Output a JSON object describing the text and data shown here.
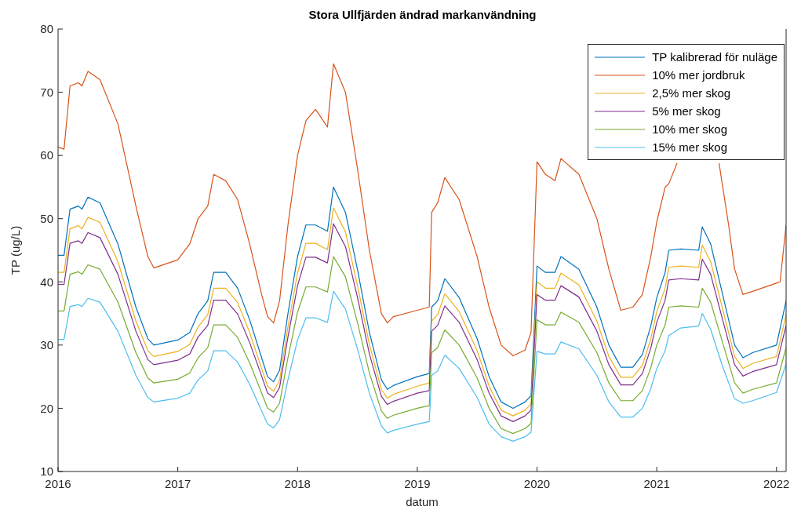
{
  "chart_data": {
    "type": "line",
    "title": "Stora Ullfjärden ändrad markanvändning",
    "xlabel": "datum",
    "ylabel": "TP (ug/L)",
    "x": [
      2016.0,
      2016.05,
      2016.1,
      2016.17,
      2016.2,
      2016.25,
      2016.35,
      2016.5,
      2016.65,
      2016.75,
      2016.8,
      2017.0,
      2017.1,
      2017.17,
      2017.25,
      2017.3,
      2017.4,
      2017.5,
      2017.6,
      2017.7,
      2017.75,
      2017.8,
      2017.85,
      2017.92,
      2018.0,
      2018.07,
      2018.15,
      2018.25,
      2018.3,
      2018.4,
      2018.5,
      2018.6,
      2018.7,
      2018.75,
      2018.8,
      2019.0,
      2019.1,
      2019.12,
      2019.17,
      2019.23,
      2019.35,
      2019.5,
      2019.6,
      2019.7,
      2019.8,
      2019.9,
      2019.95,
      2020.0,
      2020.07,
      2020.15,
      2020.2,
      2020.35,
      2020.5,
      2020.6,
      2020.7,
      2020.8,
      2020.88,
      2020.95,
      2021.0,
      2021.07,
      2021.1,
      2021.2,
      2021.35,
      2021.38,
      2021.45,
      2021.55,
      2021.65,
      2021.72,
      2021.8,
      2022.0,
      2022.08
    ],
    "series": [
      {
        "name": "TP kalibrerad för nuläge",
        "color": "#0072bd",
        "values": [
          44.2,
          44.2,
          51.5,
          52,
          51.5,
          53.4,
          52.5,
          46,
          36,
          31,
          30,
          30.8,
          32,
          35,
          37,
          41.5,
          41.5,
          39,
          34,
          28,
          25,
          24.2,
          26,
          35,
          44,
          49,
          49,
          48,
          55,
          51,
          42,
          32,
          24.5,
          23,
          23.6,
          25,
          25.5,
          36,
          37,
          40.5,
          37.5,
          31,
          25,
          21,
          20,
          21,
          22,
          42.5,
          41.5,
          41.5,
          44,
          42,
          36,
          30,
          26.5,
          26.5,
          28.5,
          33,
          37.5,
          41.5,
          45,
          45.2,
          45,
          48.7,
          46,
          38,
          30,
          28,
          28.8,
          30,
          37
        ]
      },
      {
        "name": "10% mer jordbruk",
        "color": "#d95319",
        "x": [
          2016.0,
          2016.05,
          2016.1,
          2016.17,
          2016.2,
          2016.25,
          2016.35,
          2016.5,
          2016.65,
          2016.75,
          2016.8,
          2017.0,
          2017.1,
          2017.17,
          2017.25,
          2017.3,
          2017.4,
          2017.5,
          2017.6,
          2017.7,
          2017.75,
          2017.8,
          2017.85,
          2017.92,
          2018.0,
          2018.07,
          2018.15,
          2018.25,
          2018.3,
          2018.4,
          2018.5,
          2018.6,
          2018.7,
          2018.75,
          2018.8,
          2019.0,
          2019.1,
          2019.12,
          2019.17,
          2019.23,
          2019.35,
          2019.5,
          2019.6,
          2019.7,
          2019.8,
          2019.9,
          2019.95,
          2020.0,
          2020.07,
          2020.15,
          2020.2,
          2020.35,
          2020.5,
          2020.6,
          2020.7,
          2020.8,
          2020.88,
          2020.95,
          2021.0,
          2021.07,
          2021.1,
          2021.17,
          2021.25,
          2021.52,
          2021.6,
          2021.65,
          2021.72,
          2021.8,
          2022.0,
          2022.03,
          2022.08
        ],
        "values": [
          61.3,
          61,
          71,
          71.5,
          71,
          73.3,
          72,
          65,
          52,
          44,
          42.2,
          43.5,
          46,
          50,
          52,
          57,
          56,
          53,
          46,
          38,
          34.5,
          33.5,
          37,
          49,
          60,
          65.5,
          67.3,
          64.5,
          74.5,
          70,
          58,
          45,
          35,
          33.5,
          34.5,
          35.5,
          36,
          51,
          52.5,
          56.5,
          53,
          44,
          36,
          30,
          28.3,
          29.2,
          32,
          59,
          57,
          56,
          59.5,
          57,
          50,
          42,
          35.5,
          36,
          38,
          44,
          49.5,
          55,
          55.5,
          58.8,
          null,
          58.8,
          49,
          42,
          38,
          38.5,
          39.8,
          40,
          49
        ]
      },
      {
        "name": "2,5% mer skog",
        "color": "#edb120",
        "values": [
          41.5,
          41.5,
          48.4,
          48.9,
          48.4,
          50.2,
          49.4,
          43.2,
          33.8,
          29.1,
          28.2,
          29,
          30.1,
          32.9,
          34.8,
          39,
          39,
          36.7,
          32,
          26.3,
          23.5,
          22.7,
          24.4,
          32.9,
          41.4,
          46.1,
          46.1,
          45.1,
          51.7,
          47.9,
          39.5,
          30.1,
          23,
          21.6,
          22.2,
          23.5,
          24,
          33.8,
          34.8,
          38.1,
          35.3,
          29.1,
          23.5,
          19.7,
          18.8,
          19.7,
          20.7,
          40,
          39,
          39,
          41.4,
          39.5,
          33.8,
          28.2,
          24.9,
          24.9,
          26.8,
          31,
          35.3,
          39,
          42.3,
          42.5,
          42.3,
          45.8,
          43.2,
          35.7,
          28.2,
          26.3,
          27.1,
          28.2,
          34.8
        ]
      },
      {
        "name": "5% mer skog",
        "color": "#7e2f8e",
        "values": [
          39.6,
          39.6,
          46.1,
          46.5,
          46.1,
          47.8,
          47,
          41.2,
          32.2,
          27.7,
          26.9,
          27.6,
          28.6,
          31.3,
          33.1,
          37.1,
          37.1,
          34.9,
          30.4,
          25.1,
          22.4,
          21.7,
          23.3,
          31.3,
          39.4,
          43.9,
          43.9,
          43,
          49.2,
          45.6,
          37.6,
          28.6,
          21.9,
          20.6,
          21.1,
          22.4,
          22.8,
          32.2,
          33.1,
          36.2,
          33.6,
          27.7,
          22.4,
          18.8,
          17.9,
          18.8,
          19.7,
          38,
          37.1,
          37.1,
          39.4,
          37.6,
          32.2,
          26.9,
          23.7,
          23.7,
          25.5,
          29.5,
          33.6,
          37.1,
          40.3,
          40.5,
          40.3,
          43.6,
          41.2,
          34,
          26.9,
          25.1,
          25.8,
          26.9,
          33.1
        ]
      },
      {
        "name": "10% mer skog",
        "color": "#77ac30",
        "values": [
          35.4,
          35.4,
          41.2,
          41.6,
          41.2,
          42.7,
          42,
          36.8,
          28.8,
          24.8,
          24,
          24.6,
          25.6,
          28,
          29.6,
          33.2,
          33.2,
          31.2,
          27.2,
          22.4,
          20,
          19.4,
          20.8,
          28,
          35.2,
          39.2,
          39.2,
          38.4,
          44,
          40.8,
          33.6,
          25.6,
          19.6,
          18.4,
          18.9,
          20,
          20.4,
          28.8,
          29.6,
          32.4,
          30,
          24.8,
          20,
          16.8,
          16,
          16.8,
          17.6,
          34,
          33.2,
          33.2,
          35.2,
          33.6,
          28.8,
          24,
          21.2,
          21.2,
          22.8,
          26.4,
          30,
          33.2,
          36,
          36.2,
          36,
          39,
          36.8,
          30.4,
          24,
          22.4,
          23,
          24,
          29.6
        ]
      },
      {
        "name": "15% mer skog",
        "color": "#4dbeee",
        "values": [
          30.9,
          30.9,
          36.1,
          36.4,
          36.1,
          37.4,
          36.8,
          32.2,
          25.2,
          21.7,
          21,
          21.6,
          22.4,
          24.5,
          25.9,
          29.1,
          29.1,
          27.3,
          23.8,
          19.6,
          17.5,
          16.9,
          18.2,
          24.5,
          30.8,
          34.3,
          34.3,
          33.6,
          38.5,
          35.7,
          29.4,
          22.4,
          17.2,
          16.1,
          16.5,
          17.5,
          17.9,
          25.2,
          25.9,
          28.4,
          26.3,
          21.7,
          17.5,
          15.5,
          14.8,
          15.5,
          16.2,
          29,
          28.6,
          28.6,
          30.5,
          29.4,
          25.2,
          21,
          18.6,
          18.6,
          20,
          23.1,
          26.3,
          29.1,
          31.5,
          32.7,
          33,
          35,
          32.5,
          26.6,
          21.5,
          20.8,
          21.2,
          22.5,
          27
        ]
      }
    ],
    "xlim": [
      2016,
      2022.08
    ],
    "xticks": [
      2016,
      2017,
      2018,
      2019,
      2020,
      2021,
      2022
    ],
    "ylim": [
      10,
      80
    ],
    "yticks": [
      10,
      20,
      30,
      40,
      50,
      60,
      70,
      80
    ],
    "grid": false,
    "legend": "top right",
    "line_style": "solid",
    "marker": "none"
  }
}
